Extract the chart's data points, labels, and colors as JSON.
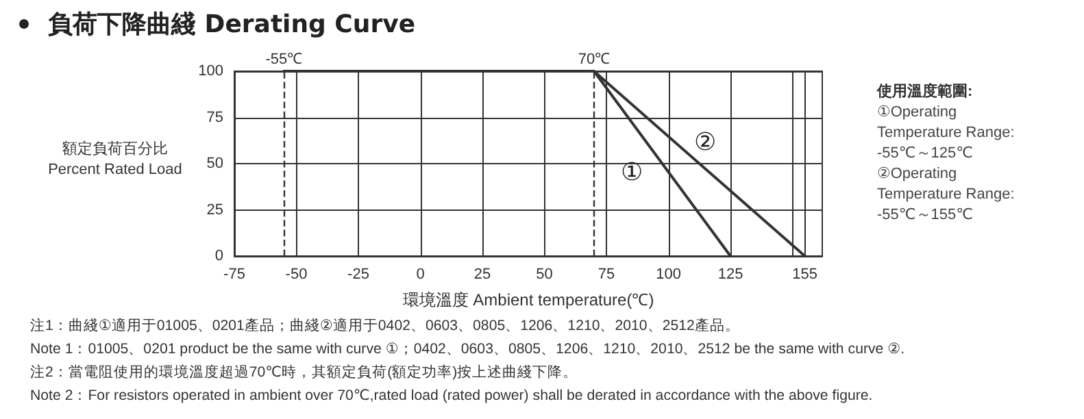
{
  "chart_data": {
    "type": "line",
    "title": "負荷下降曲綫 Derating Curve",
    "xlabel": "環境溫度 Ambient temperature(℃)",
    "ylabel": "額定負荷百分比\nPercent Rated Load",
    "series": [
      {
        "name": "①",
        "color": "#333333",
        "x": [
          -55,
          70,
          125
        ],
        "values": [
          100,
          100,
          0
        ]
      },
      {
        "name": "②",
        "color": "#333333",
        "x": [
          -55,
          70,
          155
        ],
        "values": [
          100,
          100,
          0
        ]
      }
    ],
    "xlim": [
      -75,
      162
    ],
    "xticks": [
      -75,
      -50,
      -25,
      0,
      25,
      50,
      75,
      100,
      125,
      {
        "value": 150,
        "label": null
      },
      155
    ],
    "ylim": [
      0,
      100
    ],
    "yticks": [
      0,
      25,
      50,
      75,
      100
    ],
    "ref_lines": [
      {
        "axis": "x",
        "value": -55,
        "label": "-55℃",
        "color": "#333333",
        "line_style": "dashed"
      },
      {
        "axis": "x",
        "value": 70,
        "label": "70℃",
        "color": "#333333",
        "line_style": "dashed"
      }
    ],
    "annotations": [
      "使用溫度範圍:",
      "①Operating Temperature Range: -55℃～125℃",
      "②Operating Temperature Range: -55℃～155℃",
      "注1：曲綫①適用于01005、0201產品；曲綫②適用于0402、0603、0805、1206、1210、2010、2512產品。",
      "Note 1：01005、0201 product be the same with curve ①；0402、0603、0805、1206、1210、2010、2512 be the same with curve ②.",
      "注2：當電阻使用的環境溫度超過70℃時，其額定負荷(額定功率)按上述曲綫下降。",
      "Note 2：For resistors operated in ambient over 70℃,rated load (rated power) shall be derated in accordance with the above figure."
    ],
    "grid": true,
    "legend": false,
    "marker": "none",
    "line_style": "solid"
  }
}
